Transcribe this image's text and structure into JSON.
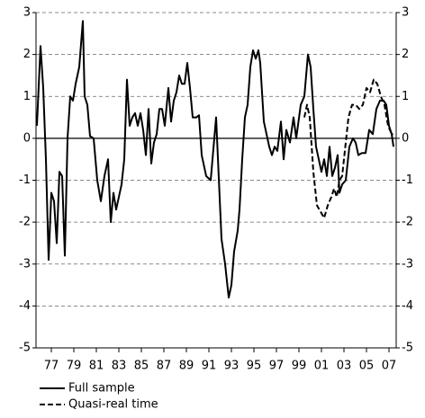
{
  "chart_data": {
    "type": "line",
    "xlim": [
      1975.64,
      2007.64
    ],
    "ylim": [
      -5,
      3
    ],
    "yticks": [
      -5,
      -4,
      -3,
      -2,
      -1,
      0,
      1,
      2,
      3
    ],
    "xticks": [
      {
        "value": 1977,
        "label": "77"
      },
      {
        "value": 1979,
        "label": "79"
      },
      {
        "value": 1981,
        "label": "81"
      },
      {
        "value": 1983,
        "label": "83"
      },
      {
        "value": 1985,
        "label": "85"
      },
      {
        "value": 1987,
        "label": "87"
      },
      {
        "value": 1989,
        "label": "89"
      },
      {
        "value": 1991,
        "label": "91"
      },
      {
        "value": 1993,
        "label": "93"
      },
      {
        "value": 1995,
        "label": "95"
      },
      {
        "value": 1997,
        "label": "97"
      },
      {
        "value": 1999,
        "label": "99"
      },
      {
        "value": 2001,
        "label": "01"
      },
      {
        "value": 2003,
        "label": "03"
      },
      {
        "value": 2005,
        "label": "05"
      },
      {
        "value": 2007,
        "label": "07"
      }
    ],
    "grid": true,
    "series": [
      {
        "name": "Full sample",
        "color": "#000000",
        "dash": false,
        "x": [
          1975.72,
          1976.04,
          1976.28,
          1976.52,
          1976.76,
          1977.0,
          1977.24,
          1977.48,
          1977.72,
          1977.96,
          1978.2,
          1978.44,
          1978.68,
          1978.92,
          1979.16,
          1979.48,
          1979.8,
          1979.96,
          1980.2,
          1980.44,
          1980.76,
          1981.08,
          1981.4,
          1981.72,
          1982.04,
          1982.28,
          1982.52,
          1982.76,
          1983.0,
          1983.24,
          1983.48,
          1983.72,
          1983.96,
          1984.2,
          1984.44,
          1984.68,
          1984.92,
          1985.16,
          1985.4,
          1985.64,
          1985.88,
          1986.12,
          1986.36,
          1986.6,
          1986.84,
          1987.08,
          1987.4,
          1987.64,
          1987.88,
          1988.12,
          1988.36,
          1988.6,
          1988.84,
          1989.08,
          1989.32,
          1989.56,
          1989.88,
          1990.12,
          1990.36,
          1990.76,
          1991.16,
          1991.64,
          1992.12,
          1992.44,
          1992.76,
          1993.0,
          1993.24,
          1993.56,
          1993.72,
          1993.96,
          1994.2,
          1994.44,
          1994.68,
          1994.92,
          1995.16,
          1995.4,
          1995.56,
          1995.88,
          1996.12,
          1996.36,
          1996.6,
          1996.84,
          1997.08,
          1997.4,
          1997.64,
          1997.88,
          1998.2,
          1998.52,
          1998.76,
          1999.16,
          1999.48,
          1999.8,
          2000.04,
          2000.28,
          2000.52,
          2000.76,
          2001.0,
          2001.24,
          2001.48,
          2001.72,
          2001.96,
          2002.2,
          2002.44,
          2002.6,
          2002.84,
          2003.16,
          2003.48,
          2003.8,
          2004.04,
          2004.28,
          2004.6,
          2004.92,
          2005.24,
          2005.56,
          2005.88,
          2006.2,
          2006.52,
          2006.76,
          2007.0,
          2007.24,
          2007.4
        ],
        "values": [
          0.3,
          2.2,
          1.2,
          -0.5,
          -2.9,
          -1.3,
          -1.5,
          -2.5,
          -0.8,
          -0.9,
          -2.8,
          0.0,
          1.0,
          0.9,
          1.3,
          1.7,
          2.8,
          1.0,
          0.8,
          0.05,
          0.0,
          -1.0,
          -1.5,
          -0.9,
          -0.5,
          -2.0,
          -1.3,
          -1.7,
          -1.4,
          -1.1,
          -0.5,
          1.4,
          0.3,
          0.5,
          0.6,
          0.3,
          0.6,
          0.2,
          -0.4,
          0.7,
          -0.6,
          -0.1,
          0.1,
          0.7,
          0.7,
          0.3,
          1.2,
          0.4,
          0.9,
          1.1,
          1.5,
          1.3,
          1.3,
          1.8,
          1.2,
          0.5,
          0.5,
          0.55,
          -0.4,
          -0.9,
          -1.0,
          0.5,
          -2.4,
          -3.0,
          -3.8,
          -3.5,
          -2.7,
          -2.2,
          -1.7,
          -0.5,
          0.5,
          0.8,
          1.7,
          2.1,
          1.9,
          2.1,
          1.8,
          0.4,
          0.1,
          -0.2,
          -0.4,
          -0.2,
          -0.3,
          0.4,
          -0.5,
          0.2,
          -0.1,
          0.5,
          0.0,
          0.8,
          1.0,
          2.0,
          1.7,
          0.7,
          -0.2,
          -0.5,
          -0.8,
          -0.5,
          -0.9,
          -0.2,
          -0.9,
          -0.7,
          -0.4,
          -1.3,
          -1.1,
          -1.0,
          -0.2,
          0.0,
          -0.1,
          -0.4,
          -0.35,
          -0.35,
          0.2,
          0.1,
          0.7,
          0.9,
          0.9,
          0.8,
          0.3,
          0.1,
          -0.2
        ]
      },
      {
        "name": "Quasi-real time",
        "color": "#000000",
        "dash": true,
        "x": [
          1999.48,
          1999.72,
          1999.96,
          2000.28,
          2000.6,
          2000.92,
          2001.24,
          2001.56,
          2001.88,
          2002.12,
          2002.36,
          2002.6,
          2002.84,
          2003.08,
          2003.4,
          2003.72,
          2004.04,
          2004.36,
          2004.68,
          2005.0,
          2005.32,
          2005.64,
          2005.96,
          2006.28,
          2006.6,
          2006.92,
          2007.24,
          2007.4
        ],
        "values": [
          0.5,
          0.8,
          0.5,
          -0.8,
          -1.6,
          -1.75,
          -1.9,
          -1.6,
          -1.4,
          -1.2,
          -1.4,
          -1.0,
          -0.9,
          -0.3,
          0.5,
          0.8,
          0.8,
          0.7,
          0.8,
          1.2,
          1.1,
          1.4,
          1.3,
          1.0,
          0.8,
          0.3,
          0.1,
          0.1
        ]
      }
    ]
  }
}
